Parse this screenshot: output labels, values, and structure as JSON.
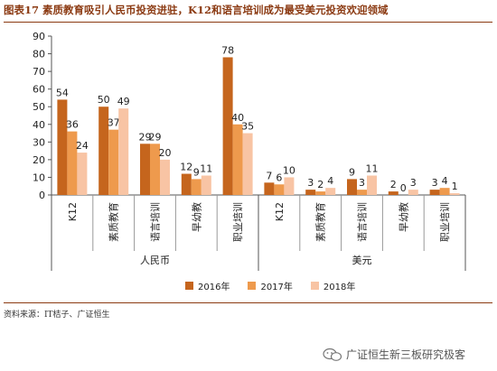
{
  "title": "图表17 素质教育吸引人民币投资进驻，K12和语言培训成为最受美元投资欢迎领域",
  "source": "资料来源：IT桔子、广证恒生",
  "watermark": "广证恒生新三板研究极客",
  "chart_data": {
    "type": "bar",
    "ylim": [
      0,
      90
    ],
    "yticks": [
      0,
      10,
      20,
      30,
      40,
      50,
      60,
      70,
      80,
      90
    ],
    "grid": false,
    "legend_position": "bottom",
    "groups": [
      {
        "label": "人民币",
        "categories": [
          "K12",
          "素质教育",
          "语言培训",
          "早幼教",
          "职业培训"
        ]
      },
      {
        "label": "美元",
        "categories": [
          "K12",
          "素质教育",
          "语言培训",
          "早幼教",
          "职业培训"
        ]
      }
    ],
    "series": [
      {
        "name": "2016年",
        "color": "#c5651d",
        "values": [
          54,
          50,
          29,
          12,
          78,
          7,
          3,
          9,
          2,
          3
        ]
      },
      {
        "name": "2017年",
        "color": "#ee9a4d",
        "values": [
          36,
          37,
          29,
          9,
          40,
          6,
          2,
          3,
          0,
          4
        ]
      },
      {
        "name": "2018年",
        "color": "#f8c4a4",
        "values": [
          24,
          49,
          20,
          11,
          35,
          10,
          4,
          11,
          3,
          1
        ]
      }
    ]
  }
}
